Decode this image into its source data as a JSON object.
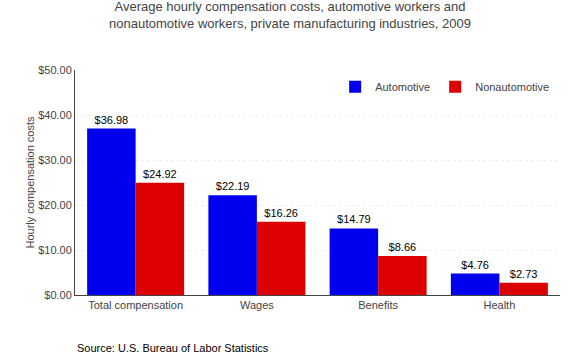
{
  "chart_data": {
    "type": "bar",
    "title": "Average hourly compensation costs, automotive workers and\nnonautomotive workers, private manufacturing industries, 2009",
    "categories": [
      "Total compensation",
      "Wages",
      "Benefits",
      "Health"
    ],
    "series": [
      {
        "name": "Automotive",
        "color": "#0000EE",
        "values": [
          36.98,
          22.19,
          14.79,
          4.76
        ],
        "value_labels": [
          "$36.98",
          "$22.19",
          "$14.79",
          "$4.76"
        ]
      },
      {
        "name": "Nonautomotive",
        "color": "#DD0000",
        "values": [
          24.92,
          16.26,
          8.66,
          2.73
        ],
        "value_labels": [
          "$24.92",
          "$16.26",
          "$8.66",
          "$2.73"
        ]
      }
    ],
    "ylabel": "Hourly compensation costs",
    "ylim": [
      0,
      50
    ],
    "yticks": [
      {
        "value": 0,
        "label": "$0.00"
      },
      {
        "value": 10,
        "label": "$10.00"
      },
      {
        "value": 20,
        "label": "$20.00"
      },
      {
        "value": 30,
        "label": "$30.00"
      },
      {
        "value": 40,
        "label": "$40.00"
      },
      {
        "value": 50,
        "label": "$50.00"
      }
    ],
    "grid": true,
    "legend": "upper right",
    "data_labels": true,
    "annotations": [
      "Source: U.S. Bureau of Labor Statistics"
    ]
  }
}
